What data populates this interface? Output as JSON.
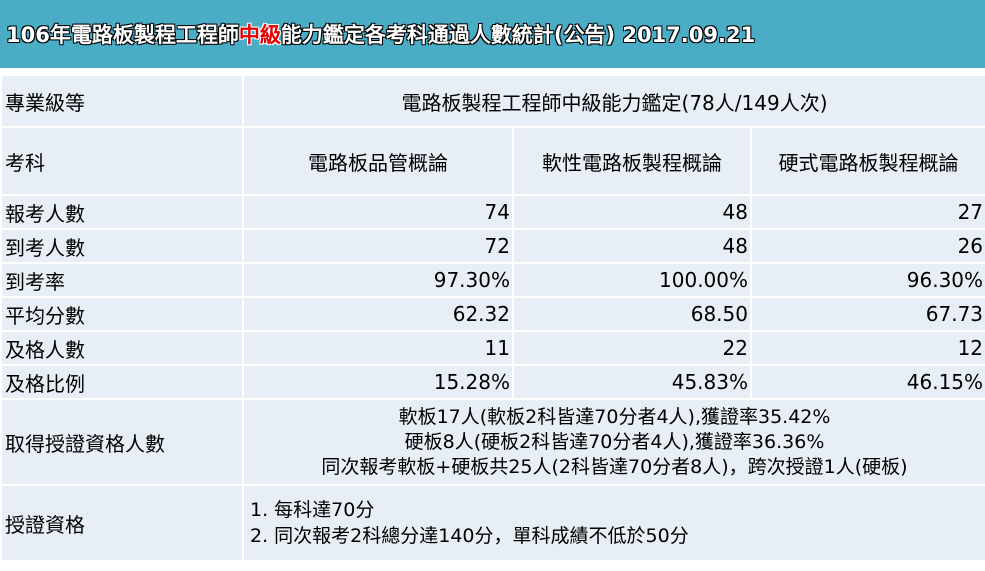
{
  "title": {
    "prefix": "106年電路板製程工程師",
    "highlight": "中級",
    "suffix": "能力鑑定各考科通過人數統計(公告) 2017.09.21"
  },
  "level_row": {
    "label": "專業級等",
    "value": "電路板製程工程師中級能力鑑定(78人/149人次)"
  },
  "subjects_row": {
    "label": "考科",
    "subjects": [
      "電路板品管概論",
      "軟性電路板製程概論",
      "硬式電路板製程概論"
    ]
  },
  "stats": [
    {
      "label": "報考人數",
      "values": [
        "74",
        "48",
        "27"
      ]
    },
    {
      "label": "到考人數",
      "values": [
        "72",
        "48",
        "26"
      ]
    },
    {
      "label": "到考率",
      "values": [
        "97.30%",
        "100.00%",
        "96.30%"
      ]
    },
    {
      "label": "平均分數",
      "values": [
        "62.32",
        "68.50",
        "67.73"
      ]
    },
    {
      "label": "及格人數",
      "values": [
        "11",
        "22",
        "12"
      ]
    },
    {
      "label": "及格比例",
      "values": [
        "15.28%",
        "45.83%",
        "46.15%"
      ]
    }
  ],
  "certified": {
    "label": "取得授證資格人數",
    "lines": [
      "軟板17人(軟板2科皆達70分者4人),獲證率35.42%",
      "硬板8人(硬板2科皆達70分者4人),獲證率36.36%",
      "同次報考軟板+硬板共25人(2科皆達70分者8人)，跨次授證1人(硬板)"
    ]
  },
  "requirements": {
    "label": "授證資格",
    "lines": [
      "1. 每科達70分",
      "2. 同次報考2科總分達140分，單科成績不低於50分"
    ]
  }
}
